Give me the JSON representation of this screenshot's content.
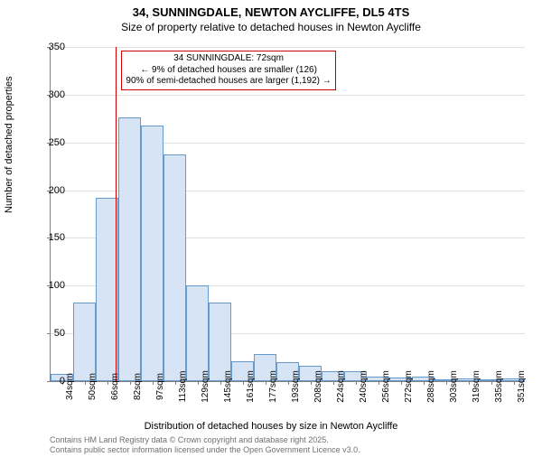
{
  "titles": {
    "line1": "34, SUNNINGDALE, NEWTON AYCLIFFE, DL5 4TS",
    "line2": "Size of property relative to detached houses in Newton Aycliffe"
  },
  "ylabel": "Number of detached properties",
  "xlabel": "Distribution of detached houses by size in Newton Aycliffe",
  "chart": {
    "type": "histogram",
    "ylim": [
      0,
      350
    ],
    "ytick_step": 50,
    "yticks": [
      0,
      50,
      100,
      150,
      200,
      250,
      300,
      350
    ],
    "x_categories": [
      "34sqm",
      "50sqm",
      "66sqm",
      "82sqm",
      "97sqm",
      "113sqm",
      "129sqm",
      "145sqm",
      "161sqm",
      "177sqm",
      "193sqm",
      "208sqm",
      "224sqm",
      "240sqm",
      "256sqm",
      "272sqm",
      "288sqm",
      "303sqm",
      "319sqm",
      "335sqm",
      "351sqm"
    ],
    "values": [
      8,
      82,
      192,
      276,
      268,
      237,
      100,
      82,
      21,
      28,
      20,
      16,
      10,
      10,
      5,
      4,
      5,
      2,
      3,
      2,
      3
    ],
    "bar_fill": "#d6e4f5",
    "bar_border": "#6699cc",
    "grid_color": "#e0e0e0",
    "axis_color": "#808080",
    "background_color": "#ffffff",
    "bar_width_ratio": 1.0
  },
  "marker": {
    "x_value_sqm": 72,
    "color": "#cc0000",
    "annotation_lines": {
      "l1": "34 SUNNINGDALE: 72sqm",
      "l2": "← 9% of detached houses are smaller (126)",
      "l3": "90% of semi-detached houses are larger (1,192) →"
    }
  },
  "footer": {
    "l1": "Contains HM Land Registry data © Crown copyright and database right 2025.",
    "l2": "Contains public sector information licensed under the Open Government Licence v3.0."
  },
  "fonts": {
    "title_size_pt": 13,
    "subtitle_size_pt": 12,
    "axis_label_size_pt": 11,
    "tick_size_pt": 10,
    "annotation_size_pt": 10,
    "footer_size_pt": 9
  }
}
